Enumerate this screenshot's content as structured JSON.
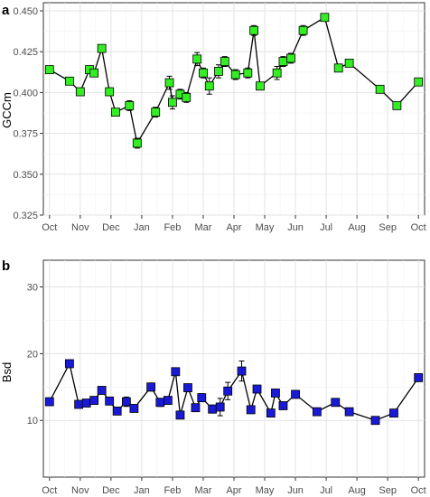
{
  "chart_data": [
    {
      "type": "line",
      "panel_label": "a",
      "ylabel": "GCCm",
      "xlabel": "",
      "x_tick_labels": [
        "Oct",
        "Nov",
        "Dec",
        "Jan",
        "Feb",
        "Mar",
        "Apr",
        "May",
        "Jun",
        "Jul",
        "Aug",
        "Sep",
        "Oct"
      ],
      "y_ticks": [
        "0.325",
        "0.350",
        "0.375",
        "0.400",
        "0.425",
        "0.450"
      ],
      "ylim": [
        0.325,
        0.455
      ],
      "xlim_months": [
        -0.2,
        12.2
      ],
      "grid": true,
      "marker_color": "#33ee22",
      "series": [
        {
          "points": [
            {
              "x": 0.0,
              "y": 0.414,
              "err": 0.0
            },
            {
              "x": 0.65,
              "y": 0.407,
              "err": 0.0
            },
            {
              "x": 1.0,
              "y": 0.4005,
              "err": 0.0
            },
            {
              "x": 1.3,
              "y": 0.414,
              "err": 0.0
            },
            {
              "x": 1.45,
              "y": 0.412,
              "err": 0.0
            },
            {
              "x": 1.7,
              "y": 0.427,
              "err": 0.0
            },
            {
              "x": 1.95,
              "y": 0.4005,
              "err": 0.002
            },
            {
              "x": 2.15,
              "y": 0.388,
              "err": 0.002
            },
            {
              "x": 2.6,
              "y": 0.392,
              "err": 0.003
            },
            {
              "x": 2.85,
              "y": 0.369,
              "err": 0.003
            },
            {
              "x": 3.45,
              "y": 0.388,
              "err": 0.003
            },
            {
              "x": 3.9,
              "y": 0.406,
              "err": 0.004
            },
            {
              "x": 4.0,
              "y": 0.394,
              "err": 0.004
            },
            {
              "x": 4.25,
              "y": 0.399,
              "err": 0.003
            },
            {
              "x": 4.45,
              "y": 0.397,
              "err": 0.003
            },
            {
              "x": 4.8,
              "y": 0.4205,
              "err": 0.004
            },
            {
              "x": 5.0,
              "y": 0.412,
              "err": 0.003
            },
            {
              "x": 5.2,
              "y": 0.404,
              "err": 0.005
            },
            {
              "x": 5.5,
              "y": 0.413,
              "err": 0.004
            },
            {
              "x": 5.7,
              "y": 0.419,
              "err": 0.003
            },
            {
              "x": 6.05,
              "y": 0.411,
              "err": 0.003
            },
            {
              "x": 6.45,
              "y": 0.412,
              "err": 0.003
            },
            {
              "x": 6.65,
              "y": 0.438,
              "err": 0.003
            },
            {
              "x": 6.85,
              "y": 0.404,
              "err": 0.0
            },
            {
              "x": 7.4,
              "y": 0.412,
              "err": 0.004
            },
            {
              "x": 7.6,
              "y": 0.419,
              "err": 0.003
            },
            {
              "x": 7.85,
              "y": 0.421,
              "err": 0.003
            },
            {
              "x": 8.25,
              "y": 0.438,
              "err": 0.003
            },
            {
              "x": 8.95,
              "y": 0.446,
              "err": 0.002
            },
            {
              "x": 9.4,
              "y": 0.415,
              "err": 0.0
            },
            {
              "x": 9.75,
              "y": 0.418,
              "err": 0.0
            },
            {
              "x": 10.75,
              "y": 0.402,
              "err": 0.0
            },
            {
              "x": 11.3,
              "y": 0.392,
              "err": 0.0
            },
            {
              "x": 12.0,
              "y": 0.4065,
              "err": 0.0
            }
          ]
        }
      ]
    },
    {
      "type": "line",
      "panel_label": "b",
      "ylabel": "Bsd",
      "xlabel": "",
      "x_tick_labels": [
        "Oct",
        "Nov",
        "Dec",
        "Jan",
        "Feb",
        "Mar",
        "Apr",
        "May",
        "Jun",
        "Jul",
        "Aug",
        "Sep",
        "Oct"
      ],
      "y_ticks": [
        "10",
        "20",
        "30"
      ],
      "ylim": [
        1.5,
        34
      ],
      "xlim_months": [
        -0.2,
        12.2
      ],
      "grid": true,
      "marker_color": "#1a1ad6",
      "series": [
        {
          "points": [
            {
              "x": 0.0,
              "y": 12.8,
              "err": 0.0
            },
            {
              "x": 0.65,
              "y": 18.5,
              "err": 0.0
            },
            {
              "x": 0.95,
              "y": 12.4,
              "err": 0.0
            },
            {
              "x": 1.2,
              "y": 12.6,
              "err": 0.0
            },
            {
              "x": 1.45,
              "y": 13.0,
              "err": 0.0
            },
            {
              "x": 1.7,
              "y": 14.5,
              "err": 0.0
            },
            {
              "x": 1.95,
              "y": 12.9,
              "err": 0.0
            },
            {
              "x": 2.2,
              "y": 11.4,
              "err": 0.5
            },
            {
              "x": 2.5,
              "y": 12.8,
              "err": 0.7
            },
            {
              "x": 2.75,
              "y": 11.8,
              "err": 0.5
            },
            {
              "x": 3.3,
              "y": 15.0,
              "err": 0.6
            },
            {
              "x": 3.6,
              "y": 12.7,
              "err": 0.6
            },
            {
              "x": 3.85,
              "y": 13.0,
              "err": 0.5
            },
            {
              "x": 4.1,
              "y": 17.3,
              "err": 0.5
            },
            {
              "x": 4.25,
              "y": 10.8,
              "err": 0.4
            },
            {
              "x": 4.5,
              "y": 14.9,
              "err": 0.4
            },
            {
              "x": 4.75,
              "y": 11.9,
              "err": 0.4
            },
            {
              "x": 4.95,
              "y": 13.4,
              "err": 0.6
            },
            {
              "x": 5.3,
              "y": 11.7,
              "err": 0.6
            },
            {
              "x": 5.55,
              "y": 12.0,
              "err": 1.3
            },
            {
              "x": 5.8,
              "y": 14.4,
              "err": 1.3
            },
            {
              "x": 6.25,
              "y": 17.4,
              "err": 1.5
            },
            {
              "x": 6.55,
              "y": 11.6,
              "err": 0.5
            },
            {
              "x": 6.75,
              "y": 14.7,
              "err": 0.5
            },
            {
              "x": 7.2,
              "y": 11.1,
              "err": 0.0
            },
            {
              "x": 7.35,
              "y": 14.1,
              "err": 0.5
            },
            {
              "x": 7.6,
              "y": 12.2,
              "err": 0.0
            },
            {
              "x": 8.0,
              "y": 13.9,
              "err": 0.0
            },
            {
              "x": 8.7,
              "y": 11.3,
              "err": 0.0
            },
            {
              "x": 9.3,
              "y": 12.7,
              "err": 0.0
            },
            {
              "x": 9.75,
              "y": 11.3,
              "err": 0.0
            },
            {
              "x": 10.6,
              "y": 10.0,
              "err": 0.0
            },
            {
              "x": 11.2,
              "y": 11.1,
              "err": 0.0
            },
            {
              "x": 12.0,
              "y": 16.4,
              "err": 0.0
            }
          ]
        }
      ]
    }
  ]
}
